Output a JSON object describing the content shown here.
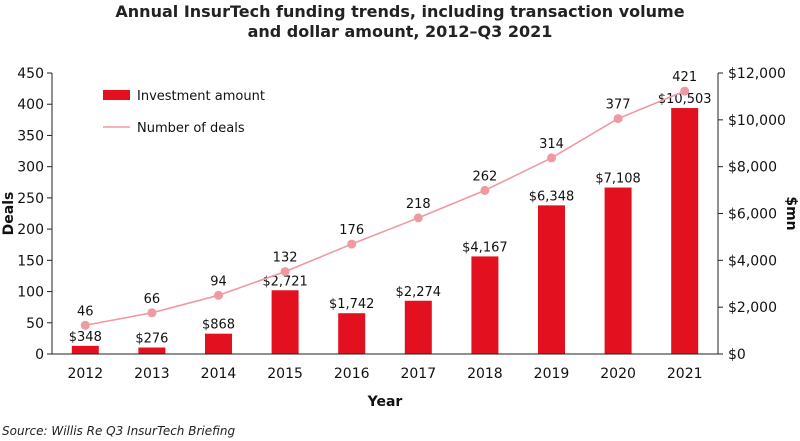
{
  "title_line1": "Annual InsurTech funding trends, including transaction volume",
  "title_line2": "and dollar amount, 2012–Q3 2021",
  "source": "Source: Willis Re Q3 InsurTech Briefing",
  "colors": {
    "bar": "#e3101f",
    "line": "#ef9aa1",
    "marker": "#ef9aa1",
    "axis": "#222222"
  },
  "chart_data": {
    "type": "bar",
    "categories": [
      "2012",
      "2013",
      "2014",
      "2015",
      "2016",
      "2017",
      "2018",
      "2019",
      "2020",
      "2021"
    ],
    "series": [
      {
        "name": "Investment amount",
        "type": "bar",
        "axis": "right",
        "values": [
          348,
          276,
          868,
          2721,
          1742,
          2274,
          4167,
          6348,
          7108,
          10503
        ],
        "labels": [
          "$348",
          "$276",
          "$868",
          "$2,721",
          "$1,742",
          "$2,274",
          "$4,167",
          "$6,348",
          "$7,108",
          "$10,503"
        ]
      },
      {
        "name": "Number of deals",
        "type": "line",
        "axis": "left",
        "values": [
          46,
          66,
          94,
          132,
          176,
          218,
          262,
          314,
          377,
          421
        ],
        "labels": [
          "46",
          "66",
          "94",
          "132",
          "176",
          "218",
          "262",
          "314",
          "377",
          "421"
        ]
      }
    ],
    "xlabel": "Year",
    "ylabel_left": "Deals",
    "ylabel_right": "$mn",
    "ylim_left": [
      0,
      450
    ],
    "ylim_right": [
      0,
      12000
    ],
    "yticks_left": [
      "0",
      "50",
      "100",
      "150",
      "200",
      "250",
      "300",
      "350",
      "400",
      "450"
    ],
    "yticks_right": [
      "$0",
      "$2,000",
      "$4,000",
      "$6,000",
      "$8,000",
      "$10,000",
      "$12,000"
    ],
    "legend": [
      "Investment amount",
      "Number of deals"
    ],
    "legend_position": "top-left",
    "grid": false
  }
}
